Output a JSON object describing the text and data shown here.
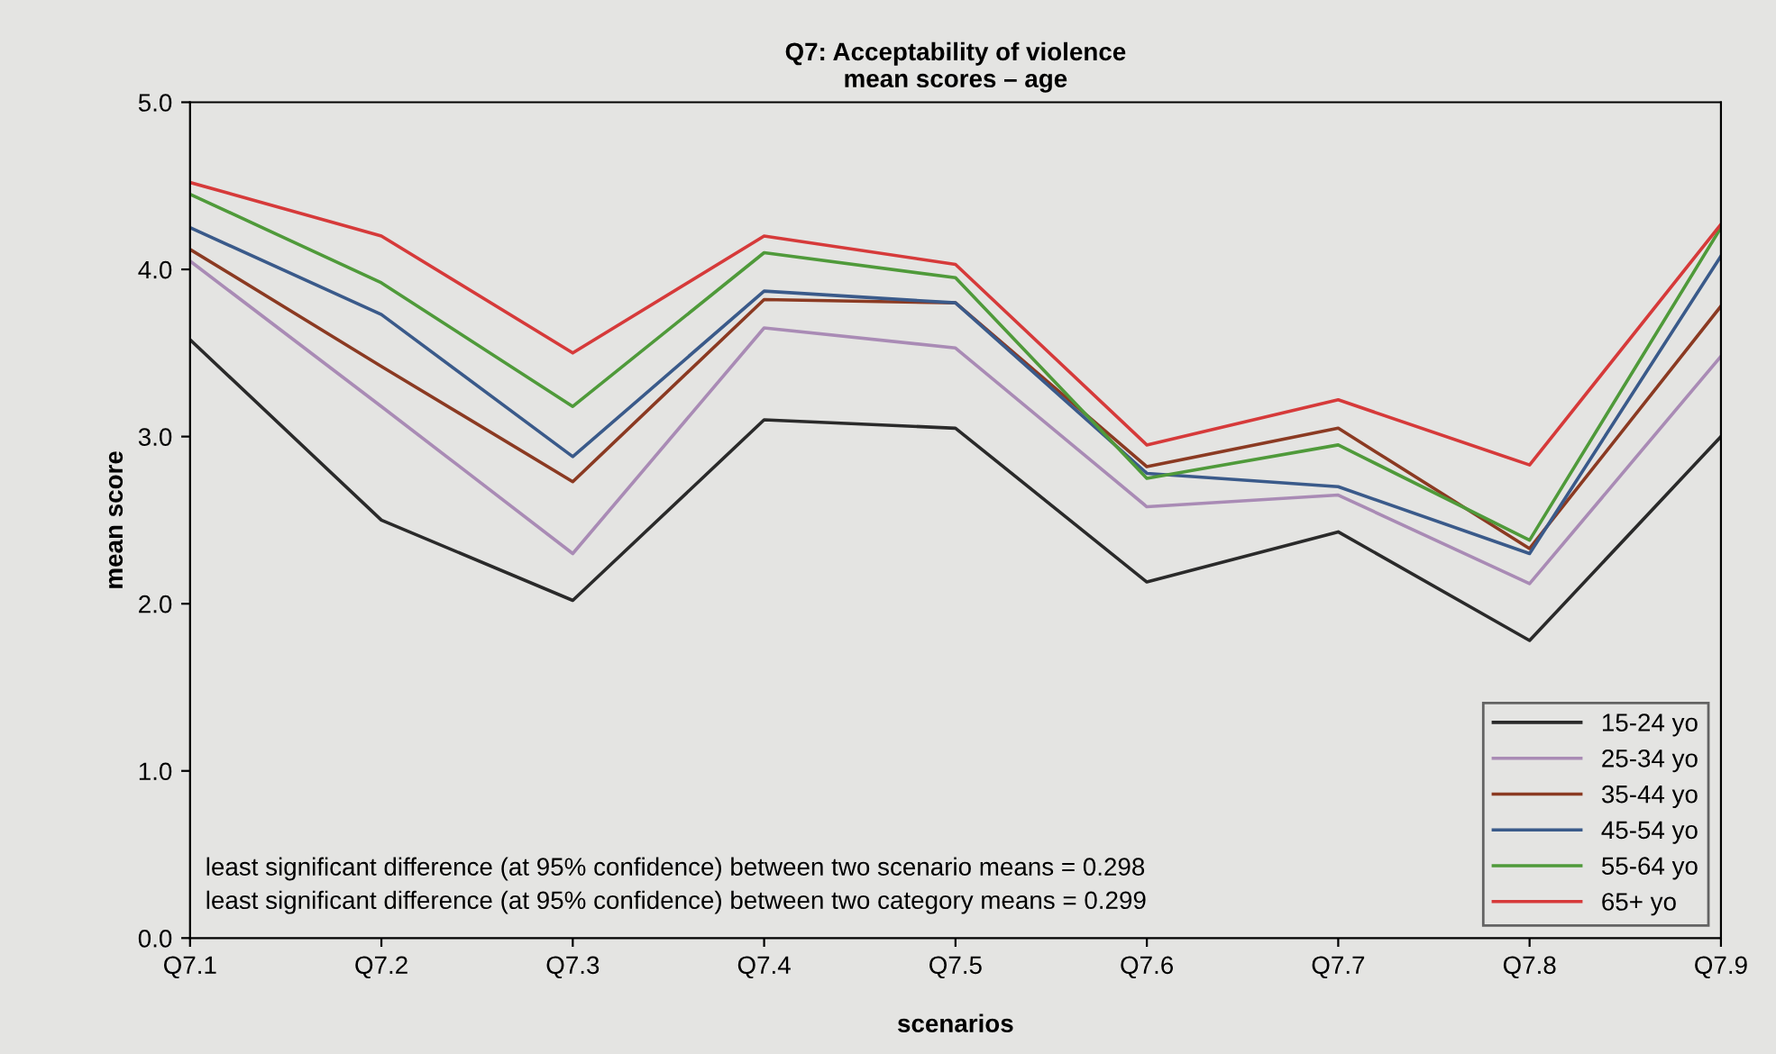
{
  "chart_data": {
    "type": "line",
    "title": "Q7: Acceptability of violence\nmean scores – age",
    "xlabel": "scenarios",
    "ylabel": "mean score",
    "categories": [
      "Q7.1",
      "Q7.2",
      "Q7.3",
      "Q7.4",
      "Q7.5",
      "Q7.6",
      "Q7.7",
      "Q7.8",
      "Q7.9"
    ],
    "series": [
      {
        "name": "15-24 yo",
        "color": "#2a2a2a",
        "values": [
          3.58,
          2.5,
          2.02,
          3.1,
          3.05,
          2.13,
          2.43,
          1.78,
          3.0
        ]
      },
      {
        "name": "25-34 yo",
        "color": "#a98bb5",
        "values": [
          4.05,
          3.18,
          2.3,
          3.65,
          3.53,
          2.58,
          2.65,
          2.12,
          3.48
        ]
      },
      {
        "name": "35-44 yo",
        "color": "#8b3a22",
        "values": [
          4.12,
          3.42,
          2.73,
          3.82,
          3.8,
          2.82,
          3.05,
          2.33,
          3.78
        ]
      },
      {
        "name": "45-54 yo",
        "color": "#3a5a8a",
        "values": [
          4.25,
          3.73,
          2.88,
          3.87,
          3.8,
          2.78,
          2.7,
          2.3,
          4.08
        ]
      },
      {
        "name": "55-64 yo",
        "color": "#4f9a3a",
        "values": [
          4.45,
          3.92,
          3.18,
          4.1,
          3.95,
          2.75,
          2.95,
          2.38,
          4.25
        ]
      },
      {
        "name": "65+ yo",
        "color": "#d63a3a",
        "values": [
          4.52,
          4.2,
          3.5,
          4.2,
          4.03,
          2.95,
          3.22,
          2.83,
          4.27
        ]
      }
    ],
    "ylim": [
      0,
      5
    ],
    "yticks": [
      {
        "value": 0,
        "label": "0.0"
      },
      {
        "value": 1,
        "label": "1.0"
      },
      {
        "value": 2,
        "label": "2.0"
      },
      {
        "value": 3,
        "label": "3.0"
      },
      {
        "value": 4,
        "label": "4.0"
      },
      {
        "value": 5,
        "label": "5.0"
      }
    ],
    "grid": false,
    "legend": "bottom right",
    "marker": "none",
    "line_style": "solid",
    "annotations": [
      "least significant difference (at 95% confidence) between two scenario means = 0.298",
      "least significant difference (at 95% confidence) between two category means = 0.299"
    ]
  }
}
